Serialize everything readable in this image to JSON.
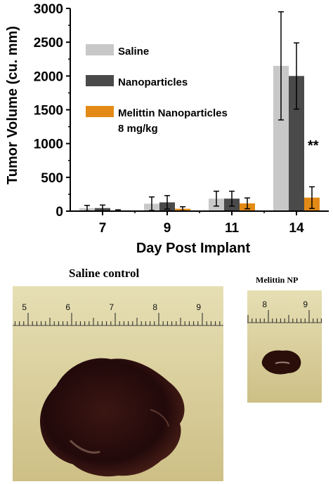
{
  "chart_data": {
    "type": "bar",
    "categories": [
      "7",
      "9",
      "11",
      "14"
    ],
    "series": [
      {
        "name": "Saline",
        "color": "#c8c8c8",
        "values": [
          45,
          110,
          185,
          2150
        ],
        "errors": [
          40,
          100,
          110,
          800
        ]
      },
      {
        "name": "Nanoparticles",
        "color": "#4a4a4a",
        "values": [
          45,
          130,
          185,
          2000
        ],
        "errors": [
          45,
          100,
          110,
          490
        ]
      },
      {
        "name": "Melittin Nanoparticles",
        "legend_line2": "8 mg/kg",
        "color": "#e38a16",
        "values": [
          10,
          35,
          115,
          200
        ],
        "errors": [
          10,
          30,
          80,
          160
        ]
      }
    ],
    "xlabel": "Day Post Implant",
    "ylabel": "Tumor Volume (cu. mm)",
    "ylim": [
      0,
      3000
    ],
    "yticks": [
      "0",
      "500",
      "1000",
      "1500",
      "2000",
      "2500",
      "3000"
    ],
    "annotation": "**",
    "grid": false,
    "legend_position": "top-left"
  },
  "photos": {
    "left": {
      "caption": "Saline control",
      "ruler_labels": [
        "5",
        "6",
        "7",
        "8",
        "9"
      ]
    },
    "right": {
      "caption": "Melittin NP",
      "ruler_labels": [
        "8",
        "9"
      ]
    }
  },
  "colors": {
    "background_photo": "#ddd3a0",
    "tumor": "#2a0e0a"
  }
}
